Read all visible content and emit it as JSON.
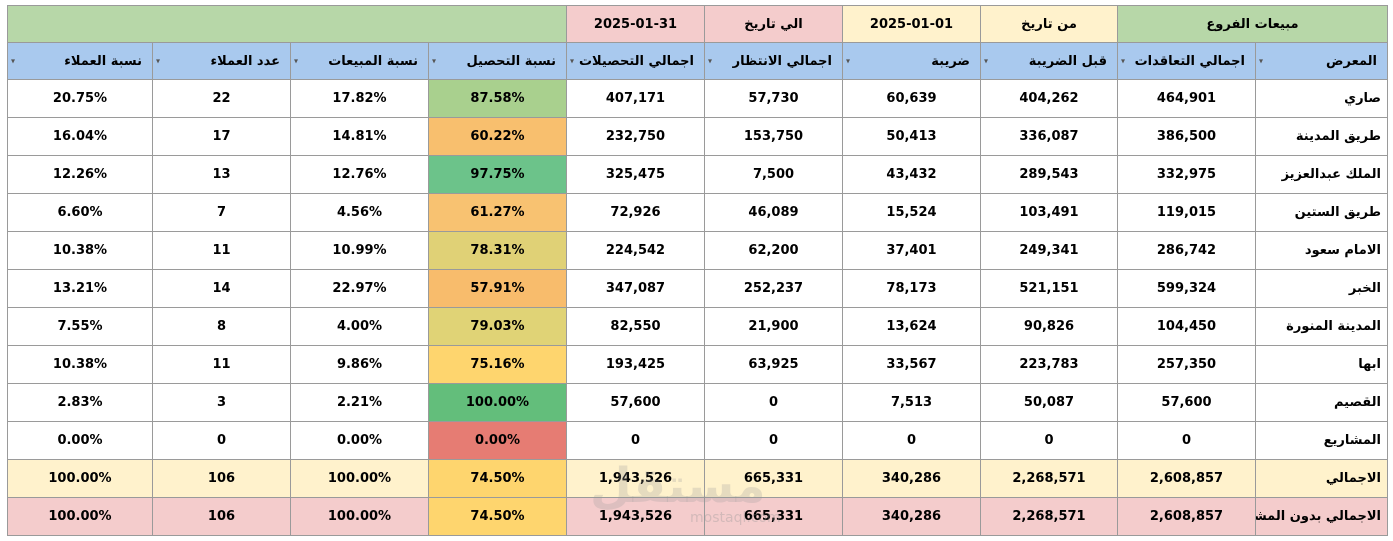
{
  "top": {
    "title": "مبيعات الفروع",
    "from_label": "من تاريخ",
    "from_date": "2025-01-01",
    "to_label": "الي تاريخ",
    "to_date": "2025-01-31"
  },
  "headers": [
    "المعرض",
    "اجمالي التعاقدات",
    "قبل الضريبة",
    "ضريبة",
    "اجمالي الانتظار",
    "اجمالي التحصيلات",
    "نسبة التحصيل",
    "نسبة المبيعات",
    "عدد العملاء",
    "نسبة العملاء"
  ],
  "rows": [
    {
      "name": "صاري",
      "contracts": "464,901",
      "pretax": "404,262",
      "tax": "60,639",
      "waiting": "57,730",
      "collections": "407,171",
      "coll_pct": "87.58%",
      "sales_pct": "17.82%",
      "clients": "22",
      "clients_pct": "20.75%",
      "coll_color": "#a9d08e"
    },
    {
      "name": "طريق المدينة",
      "contracts": "386,500",
      "pretax": "336,087",
      "tax": "50,413",
      "waiting": "153,750",
      "collections": "232,750",
      "coll_pct": "60.22%",
      "sales_pct": "14.81%",
      "clients": "17",
      "clients_pct": "16.04%",
      "coll_color": "#f8bf6e"
    },
    {
      "name": "الملك عبدالعزيز",
      "contracts": "332,975",
      "pretax": "289,543",
      "tax": "43,432",
      "waiting": "7,500",
      "collections": "325,475",
      "coll_pct": "97.75%",
      "sales_pct": "12.76%",
      "clients": "13",
      "clients_pct": "12.26%",
      "coll_color": "#6cc38a"
    },
    {
      "name": "طريق الستين",
      "contracts": "119,015",
      "pretax": "103,491",
      "tax": "15,524",
      "waiting": "46,089",
      "collections": "72,926",
      "coll_pct": "61.27%",
      "sales_pct": "4.56%",
      "clients": "7",
      "clients_pct": "6.60%",
      "coll_color": "#f8c271"
    },
    {
      "name": "الامام سعود",
      "contracts": "286,742",
      "pretax": "249,341",
      "tax": "37,401",
      "waiting": "62,200",
      "collections": "224,542",
      "coll_pct": "78.31%",
      "sales_pct": "10.99%",
      "clients": "11",
      "clients_pct": "10.38%",
      "coll_color": "#e0d176"
    },
    {
      "name": "الخبر",
      "contracts": "599,324",
      "pretax": "521,151",
      "tax": "78,173",
      "waiting": "252,237",
      "collections": "347,087",
      "coll_pct": "57.91%",
      "sales_pct": "22.97%",
      "clients": "14",
      "clients_pct": "13.21%",
      "coll_color": "#f8bc6c"
    },
    {
      "name": "المدينة المنورة",
      "contracts": "104,450",
      "pretax": "90,826",
      "tax": "13,624",
      "waiting": "21,900",
      "collections": "82,550",
      "coll_pct": "79.03%",
      "sales_pct": "4.00%",
      "clients": "8",
      "clients_pct": "7.55%",
      "coll_color": "#e0d376"
    },
    {
      "name": "ابها",
      "contracts": "257,350",
      "pretax": "223,783",
      "tax": "33,567",
      "waiting": "63,925",
      "collections": "193,425",
      "coll_pct": "75.16%",
      "sales_pct": "9.86%",
      "clients": "11",
      "clients_pct": "10.38%",
      "coll_color": "#fed56e"
    },
    {
      "name": "القصيم",
      "contracts": "57,600",
      "pretax": "50,087",
      "tax": "7,513",
      "waiting": "0",
      "collections": "57,600",
      "coll_pct": "100.00%",
      "sales_pct": "2.21%",
      "clients": "3",
      "clients_pct": "2.83%",
      "coll_color": "#63be7b"
    },
    {
      "name": "المشاريع",
      "contracts": "0",
      "pretax": "0",
      "tax": "0",
      "waiting": "0",
      "collections": "0",
      "coll_pct": "0.00%",
      "sales_pct": "0.00%",
      "clients": "0",
      "clients_pct": "0.00%",
      "coll_color": "#e67c73"
    }
  ],
  "totals": [
    {
      "name": "الاجمالي",
      "contracts": "2,608,857",
      "pretax": "2,268,571",
      "tax": "340,286",
      "waiting": "665,331",
      "collections": "1,943,526",
      "coll_pct": "74.50%",
      "sales_pct": "100.00%",
      "clients": "106",
      "clients_pct": "100.00%",
      "coll_color": "#fed56e"
    },
    {
      "name": "الاجمالي بدون المشاريع",
      "contracts": "2,608,857",
      "pretax": "2,268,571",
      "tax": "340,286",
      "waiting": "665,331",
      "collections": "1,943,526",
      "coll_pct": "74.50%",
      "sales_pct": "100.00%",
      "clients": "106",
      "clients_pct": "100.00%",
      "coll_color": "#fed56e"
    }
  ],
  "watermark": "مستقل",
  "watermark_sub": "mostaql.com"
}
